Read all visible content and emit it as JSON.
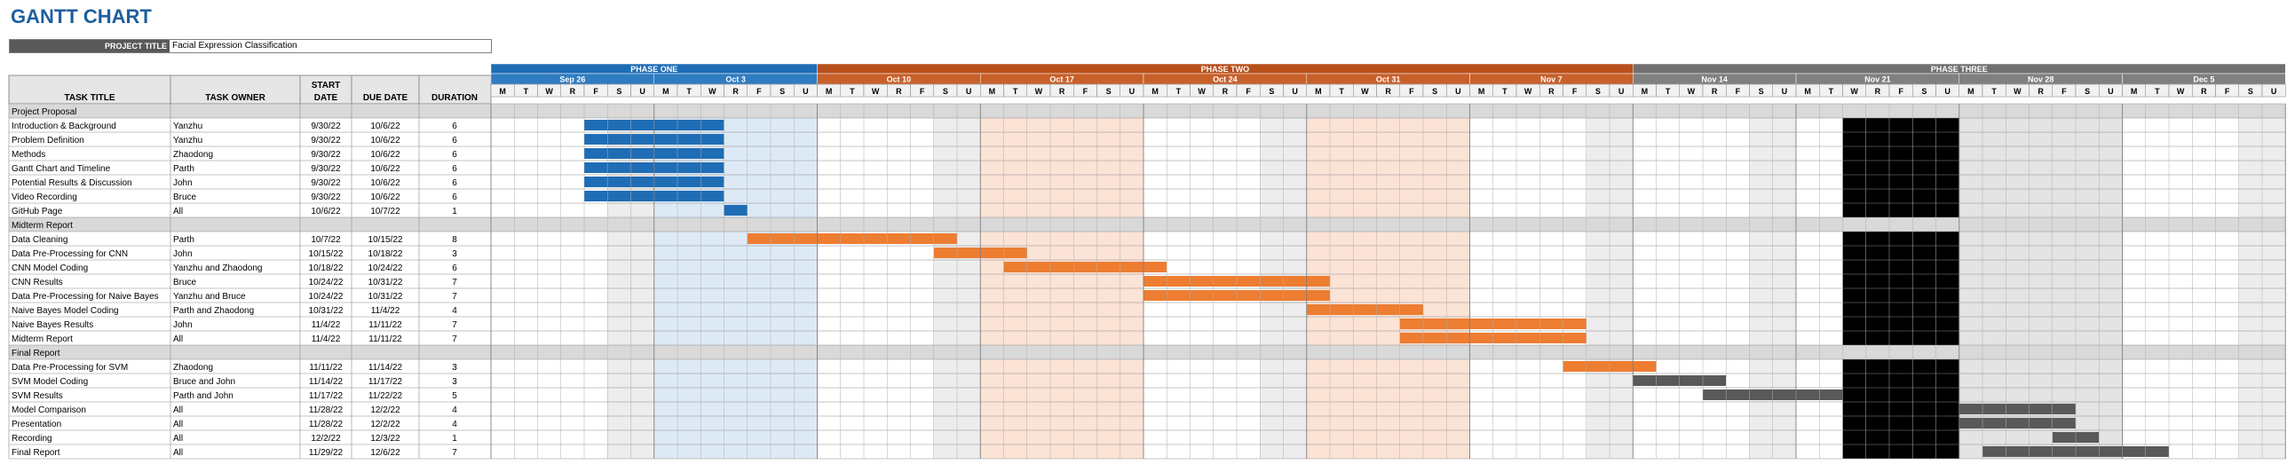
{
  "title": "GANTT CHART",
  "project": {
    "label": "PROJECT TITLE",
    "value": "Facial Expression Classification"
  },
  "columns": {
    "task": "TASK TITLE",
    "owner": "TASK OWNER",
    "start_l1": "START",
    "start_l2": "DATE",
    "due": "DUE DATE",
    "duration": "DURATION"
  },
  "timeline_start": "2022-09-19",
  "phases": [
    {
      "label": "PHASE ONE",
      "from_day": 0,
      "to_day": 14,
      "color": "#1f6db5"
    },
    {
      "label": "PHASE TWO",
      "from_day": 14,
      "to_day": 49,
      "color": "#b8501c"
    },
    {
      "label": "PHASE THREE",
      "from_day": 49,
      "to_day": 77,
      "color": "#707070"
    }
  ],
  "weeks": [
    {
      "label": "Sep 26",
      "from_day": 0,
      "to_day": 7,
      "color": "#2f7cc0"
    },
    {
      "label": "Oct 3",
      "from_day": 7,
      "to_day": 14,
      "color": "#2f7cc0"
    },
    {
      "label": "Oct 10",
      "from_day": 14,
      "to_day": 21,
      "color": "#c8602a"
    },
    {
      "label": "Oct 17",
      "from_day": 21,
      "to_day": 28,
      "color": "#c8602a"
    },
    {
      "label": "Oct 24",
      "from_day": 28,
      "to_day": 35,
      "color": "#c8602a"
    },
    {
      "label": "Oct 31",
      "from_day": 35,
      "to_day": 42,
      "color": "#c8602a"
    },
    {
      "label": "Nov 7",
      "from_day": 42,
      "to_day": 49,
      "color": "#c8602a"
    },
    {
      "label": "Nov 14",
      "from_day": 49,
      "to_day": 56,
      "color": "#808080"
    },
    {
      "label": "Nov 21",
      "from_day": 56,
      "to_day": 63,
      "color": "#808080"
    },
    {
      "label": "Nov 28",
      "from_day": 63,
      "to_day": 70,
      "color": "#808080"
    },
    {
      "label": "Dec 5",
      "from_day": 70,
      "to_day": 77,
      "color": "#808080"
    }
  ],
  "weekdays": [
    "M",
    "T",
    "W",
    "R",
    "F",
    "S",
    "U"
  ],
  "shaded_weeks": [
    {
      "from_day": 7,
      "to_day": 14,
      "color": "#ddeaf6"
    },
    {
      "from_day": 21,
      "to_day": 28,
      "color": "#fbe3d6"
    },
    {
      "from_day": 35,
      "to_day": 42,
      "color": "#fbe3d6"
    },
    {
      "from_day": 63,
      "to_day": 70,
      "color": "#e4e4e4"
    }
  ],
  "black_block": {
    "from_day": 58,
    "to_day": 63,
    "color": "#000000"
  },
  "bar_colors": {
    "phase1": "#1f6db5",
    "phase2": "#ed7d31",
    "phase3": "#595959"
  },
  "rows": [
    {
      "type": "section",
      "task": "Project Proposal"
    },
    {
      "type": "task",
      "task": "Introduction & Background",
      "owner": "Yanzhu",
      "start": "9/30/22",
      "due": "10/6/22",
      "duration": "6",
      "bar": [
        4,
        10
      ],
      "color_key": "phase1"
    },
    {
      "type": "task",
      "task": "Problem Definition",
      "owner": "Yanzhu",
      "start": "9/30/22",
      "due": "10/6/22",
      "duration": "6",
      "bar": [
        4,
        10
      ],
      "color_key": "phase1"
    },
    {
      "type": "task",
      "task": "Methods",
      "owner": "Zhaodong",
      "start": "9/30/22",
      "due": "10/6/22",
      "duration": "6",
      "bar": [
        4,
        10
      ],
      "color_key": "phase1"
    },
    {
      "type": "task",
      "task": "Gantt Chart and Timeline",
      "owner": "Parth",
      "start": "9/30/22",
      "due": "10/6/22",
      "duration": "6",
      "bar": [
        4,
        10
      ],
      "color_key": "phase1"
    },
    {
      "type": "task",
      "task": "Potential Results & Discussion",
      "owner": "John",
      "start": "9/30/22",
      "due": "10/6/22",
      "duration": "6",
      "bar": [
        4,
        10
      ],
      "color_key": "phase1"
    },
    {
      "type": "task",
      "task": "Video Recording",
      "owner": "Bruce",
      "start": "9/30/22",
      "due": "10/6/22",
      "duration": "6",
      "bar": [
        4,
        10
      ],
      "color_key": "phase1"
    },
    {
      "type": "task",
      "task": "GitHub Page",
      "owner": "All",
      "start": "10/6/22",
      "due": "10/7/22",
      "duration": "1",
      "bar": [
        10,
        11
      ],
      "color_key": "phase1"
    },
    {
      "type": "section",
      "task": "Midterm Report"
    },
    {
      "type": "task",
      "task": "Data  Cleaning",
      "owner": "Parth",
      "start": "10/7/22",
      "due": "10/15/22",
      "duration": "8",
      "bar": [
        11,
        20
      ],
      "color_key": "phase2"
    },
    {
      "type": "task",
      "task": "Data Pre-Processing for CNN",
      "owner": "John",
      "start": "10/15/22",
      "due": "10/18/22",
      "duration": "3",
      "bar": [
        19,
        23
      ],
      "color_key": "phase2"
    },
    {
      "type": "task",
      "task": "CNN Model Coding",
      "owner": "Yanzhu and Zhaodong",
      "start": "10/18/22",
      "due": "10/24/22",
      "duration": "6",
      "bar": [
        22,
        29
      ],
      "color_key": "phase2"
    },
    {
      "type": "task",
      "task": "CNN Results",
      "owner": "Bruce",
      "start": "10/24/22",
      "due": "10/31/22",
      "duration": "7",
      "bar": [
        28,
        36
      ],
      "color_key": "phase2"
    },
    {
      "type": "task",
      "task": "Data Pre-Processing for Naive Bayes",
      "owner": "Yanzhu and Bruce",
      "start": "10/24/22",
      "due": "10/31/22",
      "duration": "7",
      "bar": [
        28,
        36
      ],
      "color_key": "phase2"
    },
    {
      "type": "task",
      "task": "Naive Bayes Model Coding",
      "owner": "Parth and Zhaodong",
      "start": "10/31/22",
      "due": "11/4/22",
      "duration": "4",
      "bar": [
        35,
        40
      ],
      "color_key": "phase2"
    },
    {
      "type": "task",
      "task": "Naive Bayes Results",
      "owner": "John",
      "start": "11/4/22",
      "due": "11/11/22",
      "duration": "7",
      "bar": [
        39,
        47
      ],
      "color_key": "phase2"
    },
    {
      "type": "task",
      "task": "Midterm Report",
      "owner": "All",
      "start": "11/4/22",
      "due": "11/11/22",
      "duration": "7",
      "bar": [
        39,
        47
      ],
      "color_key": "phase2"
    },
    {
      "type": "section",
      "task": "Final Report"
    },
    {
      "type": "task",
      "task": "Data Pre-Processing for SVM",
      "owner": "Zhaodong",
      "start": "11/11/22",
      "due": "11/14/22",
      "duration": "3",
      "bar": [
        46,
        50
      ],
      "color_key": "phase2"
    },
    {
      "type": "task",
      "task": "SVM Model Coding",
      "owner": "Bruce and John",
      "start": "11/14/22",
      "due": "11/17/22",
      "duration": "3",
      "bar": [
        49,
        53
      ],
      "color_key": "phase3"
    },
    {
      "type": "task",
      "task": "SVM Results",
      "owner": "Parth and John",
      "start": "11/17/22",
      "due": "11/22/22",
      "duration": "5",
      "bar": [
        52,
        58
      ],
      "color_key": "phase3"
    },
    {
      "type": "task",
      "task": "Model Comparison",
      "owner": "All",
      "start": "11/28/22",
      "due": "12/2/22",
      "duration": "4",
      "bar": [
        63,
        68
      ],
      "color_key": "phase3"
    },
    {
      "type": "task",
      "task": "Presentation",
      "owner": "All",
      "start": "11/28/22",
      "due": "12/2/22",
      "duration": "4",
      "bar": [
        63,
        68
      ],
      "color_key": "phase3"
    },
    {
      "type": "task",
      "task": "Recording",
      "owner": "All",
      "start": "12/2/22",
      "due": "12/3/22",
      "duration": "1",
      "bar": [
        67,
        69
      ],
      "color_key": "phase3"
    },
    {
      "type": "task",
      "task": "Final Report",
      "owner": "All",
      "start": "11/29/22",
      "due": "12/6/22",
      "duration": "7",
      "bar": [
        64,
        72
      ],
      "color_key": "phase3"
    }
  ]
}
